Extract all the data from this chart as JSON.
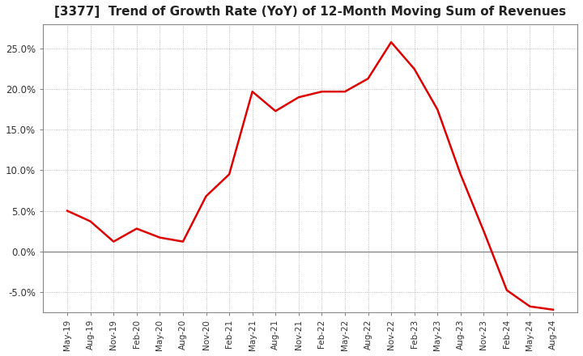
{
  "title": "[3377]  Trend of Growth Rate (YoY) of 12-Month Moving Sum of Revenues",
  "title_fontsize": 11,
  "background_color": "#ffffff",
  "plot_bg_color": "#ffffff",
  "grid_color": "#aaaaaa",
  "line_color": "#dd0000",
  "zero_line_color": "#888888",
  "ylim": [
    -0.075,
    0.28
  ],
  "yticks": [
    -0.05,
    0.0,
    0.05,
    0.1,
    0.15,
    0.2,
    0.25
  ],
  "x_labels": [
    "May-19",
    "Aug-19",
    "Nov-19",
    "Feb-20",
    "May-20",
    "Aug-20",
    "Nov-20",
    "Feb-21",
    "May-21",
    "Aug-21",
    "Nov-21",
    "Feb-22",
    "May-22",
    "Aug-22",
    "Nov-22",
    "Feb-23",
    "May-23",
    "Aug-23",
    "Nov-23",
    "Feb-24",
    "May-24",
    "Aug-24"
  ],
  "values": [
    0.05,
    0.037,
    0.012,
    0.028,
    0.017,
    0.012,
    0.068,
    0.095,
    0.197,
    0.173,
    0.19,
    0.197,
    0.197,
    0.213,
    0.258,
    0.225,
    0.175,
    0.095,
    0.025,
    -0.048,
    -0.068,
    -0.072
  ]
}
